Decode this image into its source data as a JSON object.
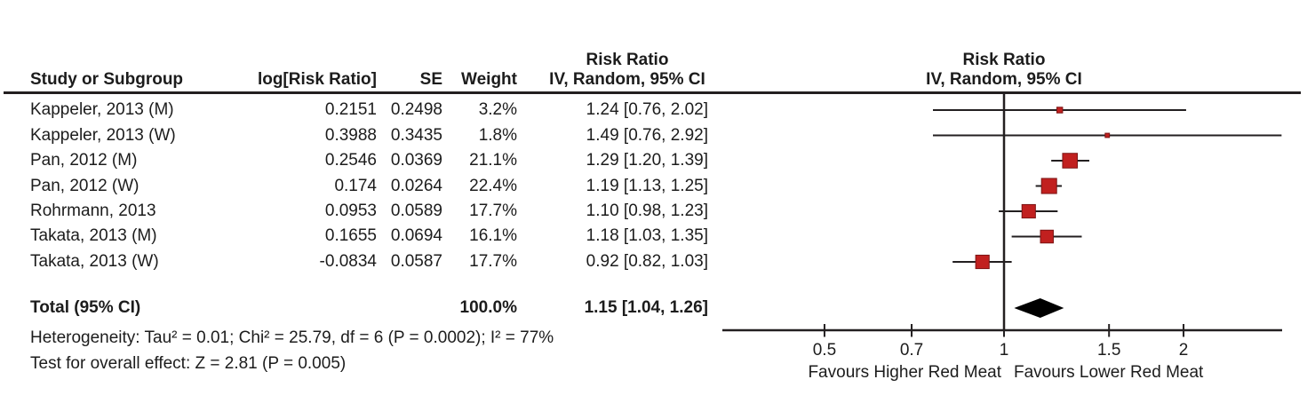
{
  "header": {
    "col_study": "Study or Subgroup",
    "col_log_rr": "log[Risk Ratio]",
    "col_se": "SE",
    "col_weight": "Weight",
    "text_col_title_line1": "Risk Ratio",
    "text_col_title_line2": "IV, Random, 95% CI",
    "plot_col_title_line1": "Risk Ratio",
    "plot_col_title_line2": "IV, Random, 95% CI"
  },
  "rows": [
    {
      "study": "Kappeler, 2013 (M)",
      "log_rr": "0.2151",
      "se": "0.2498",
      "weight": "3.2%",
      "ci_text": "1.24 [0.76, 2.02]"
    },
    {
      "study": "Kappeler, 2013 (W)",
      "log_rr": "0.3988",
      "se": "0.3435",
      "weight": "1.8%",
      "ci_text": "1.49 [0.76, 2.92]"
    },
    {
      "study": "Pan, 2012 (M)",
      "log_rr": "0.2546",
      "se": "0.0369",
      "weight": "21.1%",
      "ci_text": "1.29 [1.20, 1.39]"
    },
    {
      "study": "Pan, 2012 (W)",
      "log_rr": "0.174",
      "se": "0.0264",
      "weight": "22.4%",
      "ci_text": "1.19 [1.13, 1.25]"
    },
    {
      "study": "Rohrmann, 2013",
      "log_rr": "0.0953",
      "se": "0.0589",
      "weight": "17.7%",
      "ci_text": "1.10 [0.98, 1.23]"
    },
    {
      "study": "Takata, 2013 (M)",
      "log_rr": "0.1655",
      "se": "0.0694",
      "weight": "16.1%",
      "ci_text": "1.18 [1.03, 1.35]"
    },
    {
      "study": "Takata, 2013 (W)",
      "log_rr": "-0.0834",
      "se": "0.0587",
      "weight": "17.7%",
      "ci_text": "0.92 [0.82, 1.03]"
    }
  ],
  "total_row": {
    "label": "Total (95% CI)",
    "weight": "100.0%",
    "ci_text": "1.15 [1.04, 1.26]"
  },
  "footnotes": {
    "heterogeneity": "Heterogeneity: Tau² = 0.01; Chi² = 25.79, df = 6 (P = 0.0002); I² = 77%",
    "overall_effect": "Test for overall effect: Z = 2.81 (P = 0.005)"
  },
  "chart_data": {
    "type": "forest",
    "x_scale": "log",
    "x_ticks": [
      "0.5",
      "0.7",
      "1",
      "1.5",
      "2"
    ],
    "x_tick_values": [
      0.5,
      0.7,
      1,
      1.5,
      2
    ],
    "x_range": [
      0.34,
      2.93
    ],
    "center_value": 1,
    "studies": [
      {
        "name": "Kappeler, 2013 (M)",
        "rr": 1.24,
        "ci_low": 0.76,
        "ci_high": 2.02,
        "weight_pct": 3.2
      },
      {
        "name": "Kappeler, 2013 (W)",
        "rr": 1.49,
        "ci_low": 0.76,
        "ci_high": 2.92,
        "weight_pct": 1.8
      },
      {
        "name": "Pan, 2012 (M)",
        "rr": 1.29,
        "ci_low": 1.2,
        "ci_high": 1.39,
        "weight_pct": 21.1
      },
      {
        "name": "Pan, 2012 (W)",
        "rr": 1.19,
        "ci_low": 1.13,
        "ci_high": 1.25,
        "weight_pct": 22.4
      },
      {
        "name": "Rohrmann, 2013",
        "rr": 1.1,
        "ci_low": 0.98,
        "ci_high": 1.23,
        "weight_pct": 17.7
      },
      {
        "name": "Takata, 2013 (M)",
        "rr": 1.18,
        "ci_low": 1.03,
        "ci_high": 1.35,
        "weight_pct": 16.1
      },
      {
        "name": "Takata, 2013 (W)",
        "rr": 0.92,
        "ci_low": 0.82,
        "ci_high": 1.03,
        "weight_pct": 17.7
      }
    ],
    "total": {
      "rr": 1.15,
      "ci_low": 1.04,
      "ci_high": 1.26,
      "weight_pct": 100.0
    },
    "axis_label_left": "Favours Higher Red Meat",
    "axis_label_right": "Favours Lower Red Meat",
    "marker_color": "#c1201f",
    "marker_edge_color": "#7c1414",
    "line_color": "#231f20",
    "diamond_color": "#000000"
  }
}
